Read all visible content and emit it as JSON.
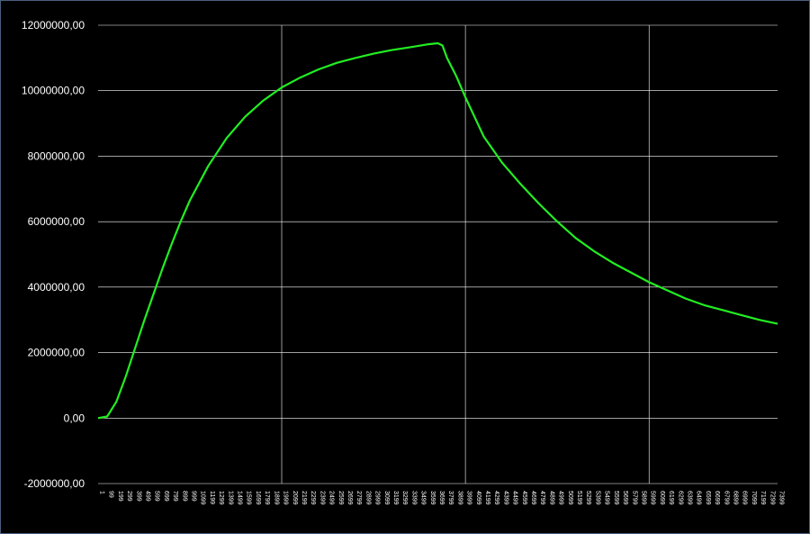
{
  "chart_data": {
    "type": "line",
    "title": "",
    "xlabel": "",
    "ylabel": "",
    "ylim": [
      -2000000,
      12000000
    ],
    "xlim": [
      1,
      7399
    ],
    "grid": true,
    "legend": "none",
    "colors": {
      "background": "#000000",
      "grid": "#ffffff",
      "line": "#22ee22",
      "text": "#ffffff"
    },
    "y_ticks": [
      -2000000,
      0,
      2000000,
      4000000,
      6000000,
      8000000,
      10000000,
      12000000
    ],
    "y_tick_labels": [
      "-2000000,00",
      "0,00",
      "2000000,00",
      "4000000,00",
      "6000000,00",
      "8000000,00",
      "10000000,00",
      "12000000,00"
    ],
    "x_tick_labels": [
      "1",
      "99",
      "199",
      "299",
      "399",
      "499",
      "599",
      "699",
      "799",
      "899",
      "999",
      "1099",
      "1199",
      "1299",
      "1399",
      "1499",
      "1599",
      "1699",
      "1799",
      "1899",
      "1999",
      "2099",
      "2199",
      "2299",
      "2399",
      "2499",
      "2599",
      "2699",
      "2799",
      "2899",
      "2999",
      "3099",
      "3199",
      "3299",
      "3399",
      "3499",
      "3599",
      "3699",
      "3799",
      "3899",
      "3999",
      "4099",
      "4199",
      "4299",
      "4399",
      "4499",
      "4599",
      "4699",
      "4799",
      "4899",
      "4999",
      "5099",
      "5199",
      "5299",
      "5399",
      "5499",
      "5599",
      "5699",
      "5799",
      "5899",
      "5999",
      "6099",
      "6199",
      "6299",
      "6399",
      "6499",
      "6599",
      "6699",
      "6799",
      "6899",
      "6999",
      "7099",
      "7199",
      "7299",
      "7399"
    ],
    "x_major_gridlines": [
      2000,
      4000,
      6000
    ],
    "series": [
      {
        "x": [
          1,
          100,
          200,
          300,
          400,
          500,
          600,
          700,
          800,
          900,
          1000,
          1200,
          1400,
          1600,
          1800,
          2000,
          2200,
          2400,
          2600,
          2800,
          3000,
          3200,
          3400,
          3600,
          3700,
          3750,
          3800,
          3900,
          4000,
          4100,
          4200,
          4400,
          4600,
          4800,
          5000,
          5200,
          5400,
          5600,
          5800,
          6000,
          6200,
          6400,
          6600,
          6800,
          7000,
          7200,
          7400
        ],
        "values": [
          0,
          50000,
          500000,
          1250000,
          2100000,
          2950000,
          3750000,
          4550000,
          5300000,
          6000000,
          6650000,
          7700000,
          8550000,
          9200000,
          9700000,
          10100000,
          10400000,
          10650000,
          10850000,
          11000000,
          11130000,
          11240000,
          11330000,
          11420000,
          11450000,
          11380000,
          11000000,
          10450000,
          9800000,
          9200000,
          8600000,
          7800000,
          7150000,
          6550000,
          6000000,
          5500000,
          5100000,
          4750000,
          4450000,
          4150000,
          3900000,
          3650000,
          3450000,
          3300000,
          3150000,
          3000000,
          2880000
        ]
      }
    ]
  }
}
